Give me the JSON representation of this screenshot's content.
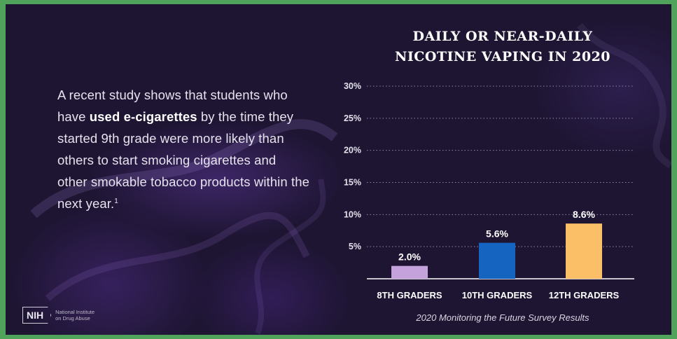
{
  "body_text": {
    "part1": "A recent study shows that students who have ",
    "bold": "used e-cigarettes",
    "part2": " by the time they started 9th grade were more likely than others to start smoking cigarettes and other smokable tobacco products within the next year.",
    "footnote": "1"
  },
  "logo": {
    "abbr": "NIH",
    "org_line1": "National Institute",
    "org_line2": "on Drug Abuse"
  },
  "chart_data": {
    "type": "bar",
    "title_line1": "DAILY OR NEAR-DAILY",
    "title_line2": "NICOTINE VAPING IN 2020",
    "caption": "2020 Monitoring the Future Survey Results",
    "categories": [
      "8TH GRADERS",
      "10TH GRADERS",
      "12TH GRADERS"
    ],
    "values": [
      2.0,
      5.6,
      8.6
    ],
    "value_labels": [
      "2.0%",
      "5.6%",
      "8.6%"
    ],
    "colors": [
      "#c6a2dd",
      "#1565c0",
      "#fbbf67"
    ],
    "yticks": [
      5,
      10,
      15,
      20,
      25,
      30
    ],
    "ytick_labels": [
      "5%",
      "10%",
      "15%",
      "20%",
      "25%",
      "30%"
    ],
    "ylim": [
      0,
      30
    ],
    "grid": true,
    "grid_style": "dotted"
  }
}
